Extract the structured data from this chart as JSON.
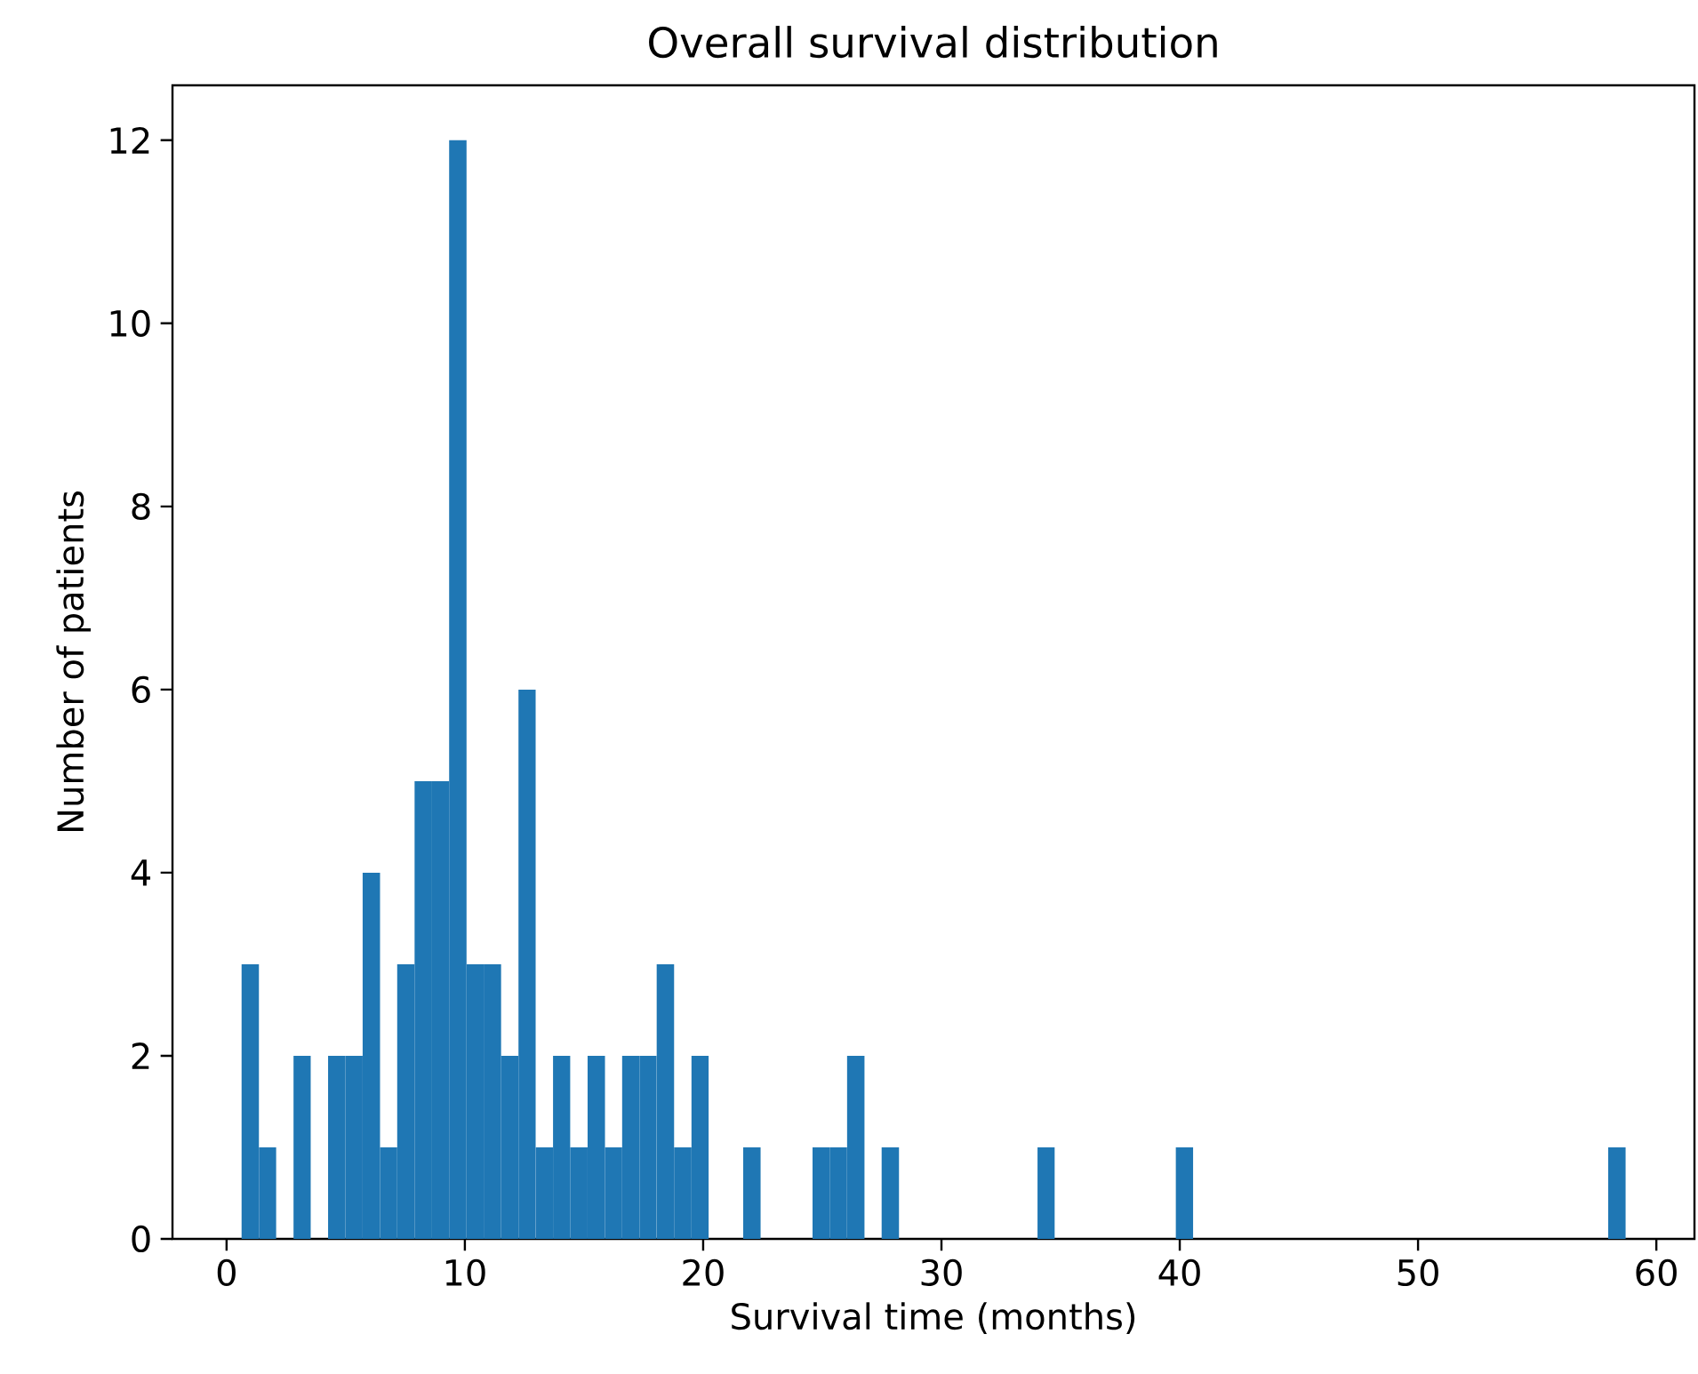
{
  "chart_data": {
    "type": "histogram",
    "title": "Overall survival distribution",
    "xlabel": "Survival time (months)",
    "ylabel": "Number of patients",
    "bins": [
      0.63,
      1.36,
      2.08,
      2.81,
      3.53,
      4.26,
      4.99,
      5.71,
      6.44,
      7.16,
      7.89,
      8.62,
      9.34,
      10.07,
      10.79,
      11.52,
      12.25,
      12.97,
      13.7,
      14.42,
      15.15,
      15.88,
      16.6,
      17.33,
      18.05,
      18.78,
      19.51,
      20.23,
      20.96,
      21.68,
      22.41,
      23.14,
      23.86,
      24.59,
      25.31,
      26.04,
      26.77,
      27.49,
      28.22,
      28.94,
      29.67,
      30.4,
      31.12,
      31.85,
      32.57,
      33.3,
      34.03,
      34.75,
      35.48,
      36.2,
      36.93,
      37.66,
      38.38,
      39.11,
      39.83,
      40.56,
      41.29,
      42.01,
      42.74,
      43.46,
      44.19,
      44.92,
      45.64,
      46.37,
      47.09,
      47.82,
      48.55,
      49.27,
      50.0,
      50.72,
      51.45,
      52.18,
      52.9,
      53.63,
      54.35,
      55.08,
      55.81,
      56.53,
      57.26,
      57.98,
      58.71
    ],
    "values": [
      3,
      1,
      0,
      2,
      0,
      2,
      2,
      4,
      1,
      3,
      5,
      5,
      12,
      3,
      3,
      2,
      6,
      1,
      2,
      1,
      2,
      1,
      2,
      2,
      3,
      1,
      2,
      0,
      0,
      1,
      0,
      0,
      0,
      1,
      1,
      2,
      0,
      1,
      0,
      0,
      0,
      0,
      0,
      0,
      0,
      0,
      1,
      0,
      0,
      0,
      0,
      0,
      0,
      0,
      1,
      0,
      0,
      0,
      0,
      0,
      0,
      0,
      0,
      0,
      0,
      0,
      0,
      0,
      0,
      0,
      0,
      0,
      0,
      0,
      0,
      0,
      0,
      0,
      0,
      1
    ],
    "color": "#1f77b4",
    "xlim": [
      -2.27,
      61.6
    ],
    "ylim": [
      0,
      12.6
    ],
    "xticks": [
      0,
      10,
      20,
      30,
      40,
      50,
      60
    ],
    "yticks": [
      0,
      2,
      4,
      6,
      8,
      10,
      12
    ],
    "grid": false
  }
}
